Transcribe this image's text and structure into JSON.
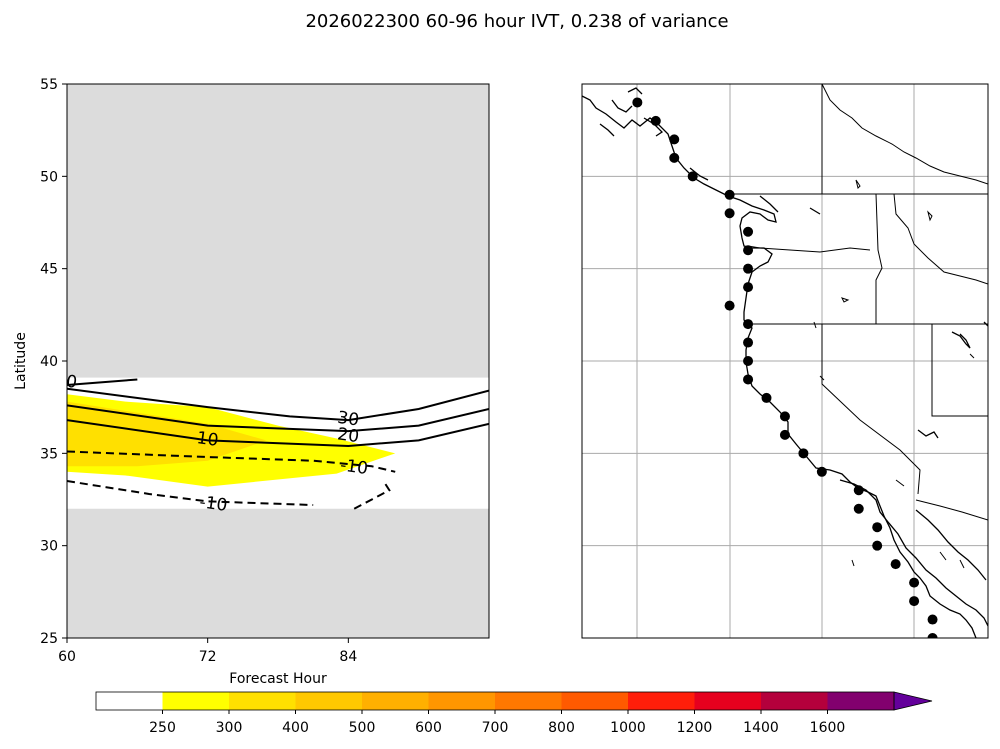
{
  "figure": {
    "title": "2026022300 60-96 hour IVT, 0.238 of variance"
  },
  "chart_data": [
    {
      "type": "contour",
      "xlabel": "Forecast Hour",
      "ylabel": "Latitude",
      "xlim": [
        60,
        96
      ],
      "ylim": [
        25,
        55
      ],
      "xticks": [
        "60",
        "72",
        "84"
      ],
      "yticks": [
        "25",
        "30",
        "35",
        "40",
        "45",
        "50",
        "55"
      ],
      "masked_above_lat": 39.1,
      "masked_below_lat": 32.0,
      "filled_regions": [
        {
          "level": "250-300",
          "color": "#ffff00",
          "points": [
            [
              60,
              38.2
            ],
            [
              65,
              37.8
            ],
            [
              72,
              37.5
            ],
            [
              78,
              36.5
            ],
            [
              83,
              35.8
            ],
            [
              88,
              35.0
            ],
            [
              83,
              33.9
            ],
            [
              72,
              33.2
            ],
            [
              65,
              33.8
            ],
            [
              60,
              34.0
            ]
          ]
        },
        {
          "level": "300-400",
          "color": "#ffe000",
          "points": [
            [
              60,
              37.8
            ],
            [
              66,
              37.2
            ],
            [
              72,
              36.6
            ],
            [
              77,
              35.7
            ],
            [
              72,
              34.6
            ],
            [
              66,
              34.3
            ],
            [
              60,
              34.3
            ]
          ]
        }
      ],
      "contour_lines": [
        {
          "level": "30",
          "style": "solid",
          "points": [
            [
              60,
              38.5
            ],
            [
              72,
              37.5
            ],
            [
              79,
              37.0
            ],
            [
              84,
              36.8
            ],
            [
              90,
              37.4
            ],
            [
              96,
              38.4
            ]
          ],
          "label": {
            "text": "30",
            "x": 84,
            "y": 36.9
          }
        },
        {
          "level": "20",
          "style": "solid",
          "points": [
            [
              60,
              37.6
            ],
            [
              72,
              36.5
            ],
            [
              84,
              36.2
            ],
            [
              90,
              36.5
            ],
            [
              96,
              37.4
            ]
          ],
          "label": {
            "text": "20",
            "x": 84,
            "y": 36.0
          }
        },
        {
          "level": "10",
          "style": "solid",
          "points": [
            [
              60,
              36.8
            ],
            [
              72,
              35.7
            ],
            [
              84,
              35.4
            ],
            [
              90,
              35.7
            ],
            [
              96,
              36.6
            ]
          ],
          "label": {
            "text": "10",
            "x": 72,
            "y": 35.8
          }
        },
        {
          "level": "0",
          "style": "solid",
          "points": [
            [
              60,
              38.7
            ],
            [
              66,
              39.0
            ]
          ],
          "label": {
            "text": "0",
            "x": 60.4,
            "y": 38.9
          }
        },
        {
          "level": "-10",
          "style": "dashed",
          "points": [
            [
              60,
              35.1
            ],
            [
              72,
              34.8
            ],
            [
              81,
              34.6
            ],
            [
              86,
              34.3
            ],
            [
              88,
              34.0
            ]
          ],
          "label": {
            "text": "-10",
            "x": 84.5,
            "y": 34.3
          }
        },
        {
          "level": "-10",
          "style": "dashed",
          "points": [
            [
              60,
              33.5
            ],
            [
              67,
              32.8
            ],
            [
              72,
              32.4
            ],
            [
              81,
              32.2
            ]
          ],
          "label": {
            "text": "-10",
            "x": 72.5,
            "y": 32.3
          }
        },
        {
          "level": "-10",
          "style": "dashed",
          "points": [
            [
              84.5,
              32.0
            ],
            [
              87.5,
              33.0
            ],
            [
              87,
              33.5
            ]
          ],
          "label": null
        }
      ]
    },
    {
      "type": "map",
      "extent": {
        "lon": [
          -131,
          -113
        ],
        "lat": [
          25,
          55
        ]
      },
      "gridlines_lon": [
        -128,
        -123,
        -118,
        -113
      ],
      "gridlines_lat": [
        30,
        35,
        40,
        45,
        50
      ],
      "station_points": [
        [
          -128.0,
          54.0
        ],
        [
          -127.0,
          53.0
        ],
        [
          -126.0,
          52.0
        ],
        [
          -126.0,
          51.0
        ],
        [
          -125.0,
          50.0
        ],
        [
          -123.0,
          49.0
        ],
        [
          -123.0,
          48.0
        ],
        [
          -122.0,
          47.0
        ],
        [
          -122.0,
          46.0
        ],
        [
          -122.0,
          45.0
        ],
        [
          -122.0,
          44.0
        ],
        [
          -123.0,
          43.0
        ],
        [
          -122.0,
          42.0
        ],
        [
          -122.0,
          41.0
        ],
        [
          -122.0,
          40.0
        ],
        [
          -122.0,
          39.0
        ],
        [
          -121.0,
          38.0
        ],
        [
          -120.0,
          37.0
        ],
        [
          -120.0,
          36.0
        ],
        [
          -119.0,
          35.0
        ],
        [
          -118.0,
          34.0
        ],
        [
          -116.0,
          33.0
        ],
        [
          -116.0,
          32.0
        ],
        [
          -115.0,
          31.0
        ],
        [
          -115.0,
          30.0
        ],
        [
          -114.0,
          29.0
        ],
        [
          -113.0,
          28.0
        ],
        [
          -113.0,
          27.0
        ],
        [
          -112.0,
          26.0
        ],
        [
          -112.0,
          25.0
        ]
      ],
      "point_color": "#000000"
    }
  ],
  "colorbar": {
    "ticks": [
      "250",
      "300",
      "400",
      "500",
      "600",
      "700",
      "800",
      "1000",
      "1200",
      "1400",
      "1600"
    ],
    "colors": [
      "#ffffff",
      "#ffff00",
      "#ffe000",
      "#ffc800",
      "#ffb000",
      "#ff9600",
      "#ff7800",
      "#ff5a00",
      "#ff1e0a",
      "#e6001e",
      "#b4003c",
      "#82006e",
      "#64009b"
    ]
  }
}
